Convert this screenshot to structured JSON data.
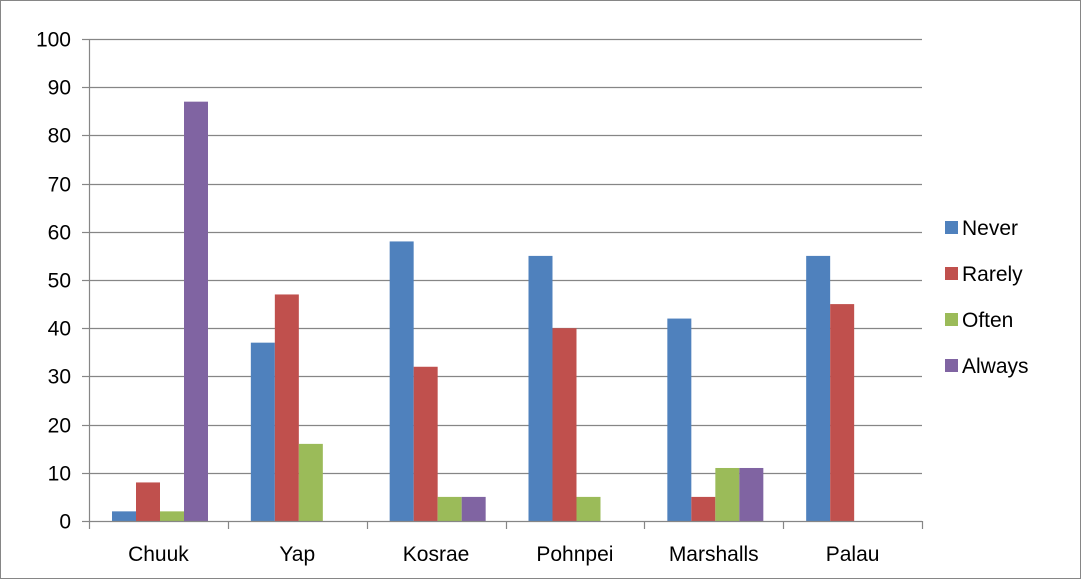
{
  "chart_data": {
    "type": "bar",
    "categories": [
      "Chuuk",
      "Yap",
      "Kosrae",
      "Pohnpei",
      "Marshalls",
      "Palau"
    ],
    "series": [
      {
        "name": "Never",
        "color": "#4F81BD",
        "values": [
          2,
          37,
          58,
          55,
          42,
          55
        ]
      },
      {
        "name": "Rarely",
        "color": "#C0504D",
        "values": [
          8,
          47,
          32,
          40,
          5,
          45
        ]
      },
      {
        "name": "Often",
        "color": "#9BBB59",
        "values": [
          2,
          16,
          5,
          5,
          11,
          0
        ]
      },
      {
        "name": "Always",
        "color": "#8064A2",
        "values": [
          87,
          0,
          5,
          0,
          11,
          0
        ]
      }
    ],
    "title": "",
    "xlabel": "",
    "ylabel": "",
    "ylim": [
      0,
      100
    ],
    "ytick_step": 10,
    "grid": true,
    "legend_position": "right",
    "gridline_color": "#868686",
    "axis_color": "#868686"
  }
}
